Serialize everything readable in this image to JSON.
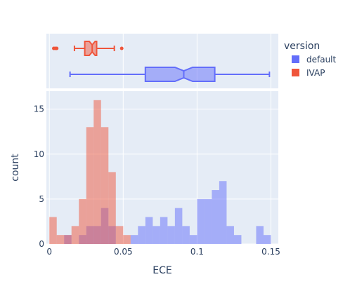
{
  "chart_data": {
    "type": "histogram",
    "xlabel": "ECE",
    "ylabel": "count",
    "xlim": [
      -0.002,
      0.155
    ],
    "ylim": [
      0,
      17
    ],
    "x_ticks": [
      0,
      0.05,
      0.1,
      0.15
    ],
    "x_tick_labels": [
      "0",
      "0.05",
      "0.1",
      "0.15"
    ],
    "y_ticks": [
      0,
      5,
      10,
      15
    ],
    "y_tick_labels": [
      "0",
      "5",
      "10",
      "15"
    ],
    "bin_width": 0.005,
    "legend": {
      "title": "version",
      "placement": "right"
    },
    "series": [
      {
        "name": "default",
        "color": "#636efa",
        "hist": [
          {
            "x0": 0.01,
            "count": 1
          },
          {
            "x0": 0.02,
            "count": 1
          },
          {
            "x0": 0.025,
            "count": 2
          },
          {
            "x0": 0.03,
            "count": 2
          },
          {
            "x0": 0.035,
            "count": 4
          },
          {
            "x0": 0.04,
            "count": 2
          },
          {
            "x0": 0.055,
            "count": 1
          },
          {
            "x0": 0.06,
            "count": 2
          },
          {
            "x0": 0.065,
            "count": 3
          },
          {
            "x0": 0.07,
            "count": 2
          },
          {
            "x0": 0.075,
            "count": 3
          },
          {
            "x0": 0.08,
            "count": 2
          },
          {
            "x0": 0.085,
            "count": 4
          },
          {
            "x0": 0.09,
            "count": 2
          },
          {
            "x0": 0.095,
            "count": 1
          },
          {
            "x0": 0.1,
            "count": 5
          },
          {
            "x0": 0.105,
            "count": 5
          },
          {
            "x0": 0.11,
            "count": 6
          },
          {
            "x0": 0.115,
            "count": 7
          },
          {
            "x0": 0.12,
            "count": 2
          },
          {
            "x0": 0.125,
            "count": 1
          },
          {
            "x0": 0.14,
            "count": 2
          },
          {
            "x0": 0.145,
            "count": 1
          }
        ],
        "box": {
          "min": 0.014,
          "q1": 0.065,
          "median": 0.091,
          "q3": 0.112,
          "max": 0.149,
          "notch_low": 0.085,
          "notch_high": 0.097,
          "outliers": []
        }
      },
      {
        "name": "IVAP",
        "color": "#ef553b",
        "hist": [
          {
            "x0": 0.0,
            "count": 3
          },
          {
            "x0": 0.005,
            "count": 1
          },
          {
            "x0": 0.01,
            "count": 1
          },
          {
            "x0": 0.015,
            "count": 2
          },
          {
            "x0": 0.02,
            "count": 5
          },
          {
            "x0": 0.025,
            "count": 13
          },
          {
            "x0": 0.03,
            "count": 16
          },
          {
            "x0": 0.035,
            "count": 13
          },
          {
            "x0": 0.04,
            "count": 8
          },
          {
            "x0": 0.045,
            "count": 2
          },
          {
            "x0": 0.05,
            "count": 1
          }
        ],
        "box": {
          "min": 0.017,
          "q1": 0.024,
          "median": 0.029,
          "q3": 0.032,
          "max": 0.044,
          "notch_low": 0.027,
          "notch_high": 0.031,
          "outliers": [
            0.003,
            0.004,
            0.005,
            0.049
          ]
        }
      }
    ]
  }
}
